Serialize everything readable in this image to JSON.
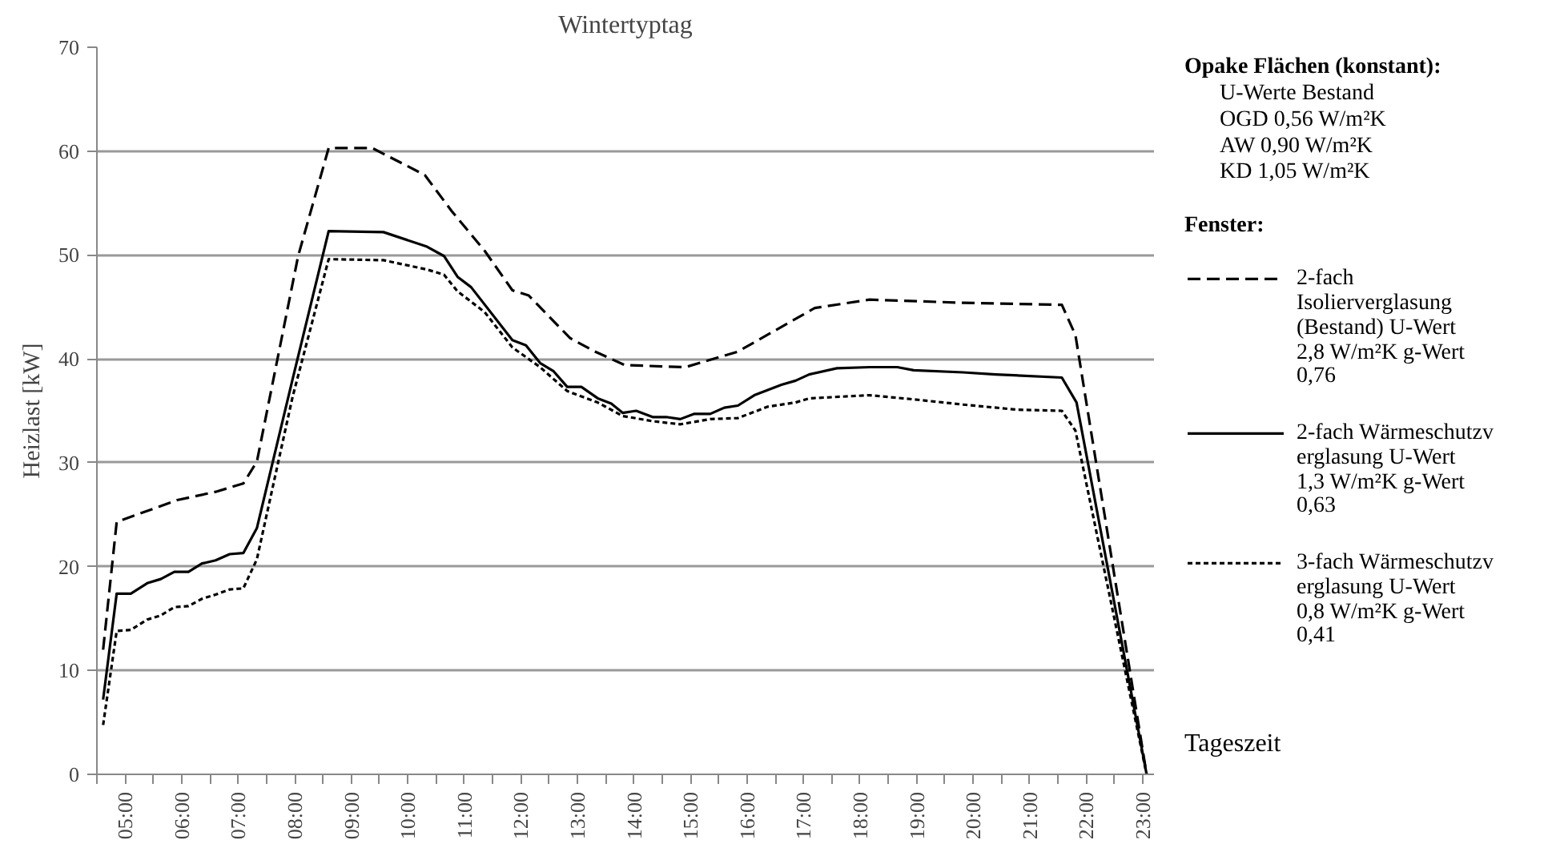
{
  "chart_data": {
    "type": "line",
    "title": "Wintertyptag",
    "ylabel": "Heizlast [kW]",
    "xlabel": "Tageszeit",
    "legend_title": "Fenster:",
    "annotations": [
      "Opake Flächen (konstant):",
      "U-Werte Bestand",
      "OGD 0,56 W/m²K",
      "AW 0,90 W/m²K",
      "KD 1,05 W/m²K"
    ],
    "xlim": [
      4.5,
      23.2
    ],
    "ylim": [
      0,
      70
    ],
    "yticks": [
      0,
      10,
      20,
      30,
      40,
      50,
      60,
      70
    ],
    "xticks": [
      {
        "value": 4.5,
        "label": null
      },
      {
        "value": 5,
        "label": "05:00"
      },
      {
        "value": 5.5,
        "label": null
      },
      {
        "value": 6,
        "label": "06:00"
      },
      {
        "value": 6.5,
        "label": null
      },
      {
        "value": 7,
        "label": "07:00"
      },
      {
        "value": 7.5,
        "label": null
      },
      {
        "value": 8,
        "label": "08:00"
      },
      {
        "value": 8.5,
        "label": null
      },
      {
        "value": 9,
        "label": "09:00"
      },
      {
        "value": 9.5,
        "label": null
      },
      {
        "value": 10,
        "label": "10:00"
      },
      {
        "value": 10.5,
        "label": null
      },
      {
        "value": 11,
        "label": "11:00"
      },
      {
        "value": 11.5,
        "label": null
      },
      {
        "value": 12,
        "label": "12:00"
      },
      {
        "value": 12.5,
        "label": null
      },
      {
        "value": 13,
        "label": "13:00"
      },
      {
        "value": 13.5,
        "label": null
      },
      {
        "value": 14,
        "label": "14:00"
      },
      {
        "value": 14.5,
        "label": null
      },
      {
        "value": 15,
        "label": "15:00"
      },
      {
        "value": 15.5,
        "label": null
      },
      {
        "value": 16,
        "label": "16:00"
      },
      {
        "value": 16.5,
        "label": null
      },
      {
        "value": 17,
        "label": "17:00"
      },
      {
        "value": 17.5,
        "label": null
      },
      {
        "value": 18,
        "label": "18:00"
      },
      {
        "value": 18.5,
        "label": null
      },
      {
        "value": 19,
        "label": "19:00"
      },
      {
        "value": 19.5,
        "label": null
      },
      {
        "value": 20,
        "label": "20:00"
      },
      {
        "value": 20.5,
        "label": null
      },
      {
        "value": 21,
        "label": "21:00"
      },
      {
        "value": 21.5,
        "label": null
      },
      {
        "value": 22,
        "label": "22:00"
      },
      {
        "value": 22.5,
        "label": null
      },
      {
        "value": 23,
        "label": "23:00"
      }
    ],
    "grid": "y",
    "legend": "right",
    "marker": "none",
    "series": [
      {
        "name": "2-fach Isolierverglasung (Bestand) U-Wert 2,8 W/m²K g-Wert 0,76",
        "color": "#000000",
        "line_style": "dashed",
        "x": [
          4.61,
          4.85,
          5.92,
          6.6,
          7.09,
          7.33,
          8.06,
          8.6,
          9.37,
          10.3,
          10.78,
          11.36,
          11.85,
          12.14,
          12.87,
          13.31,
          13.84,
          14.91,
          15.84,
          17.2,
          18.17,
          19.82,
          21.57,
          21.81,
          23.07
        ],
        "values": [
          12.0,
          24.3,
          26.4,
          27.2,
          28.0,
          30.1,
          49.9,
          60.3,
          60.3,
          57.7,
          54.2,
          50.4,
          46.6,
          46.1,
          42.0,
          40.7,
          39.4,
          39.2,
          40.7,
          44.9,
          45.7,
          45.4,
          45.2,
          42.3,
          0
        ]
      },
      {
        "name": "2-fach Wärmeschutzverglasung U-Wert 1,3 W/m²K g-Wert 0,63",
        "color": "#000000",
        "line_style": "solid",
        "x": [
          4.61,
          4.85,
          5.1,
          5.39,
          5.63,
          5.87,
          6.12,
          6.36,
          6.6,
          6.85,
          7.09,
          7.33,
          7.96,
          8.6,
          9.57,
          10.34,
          10.64,
          10.88,
          11.12,
          11.85,
          12.09,
          12.34,
          12.58,
          12.82,
          13.07,
          13.36,
          13.6,
          13.8,
          14.04,
          14.33,
          14.57,
          14.82,
          15.06,
          15.35,
          15.6,
          15.84,
          16.13,
          16.37,
          16.61,
          16.86,
          17.1,
          17.59,
          18.17,
          18.66,
          18.95,
          19.82,
          20.4,
          21.57,
          21.83,
          23.07
        ],
        "values": [
          7.2,
          17.4,
          17.4,
          18.4,
          18.8,
          19.5,
          19.5,
          20.3,
          20.6,
          21.2,
          21.3,
          23.7,
          38.0,
          52.3,
          52.2,
          50.8,
          49.9,
          47.9,
          46.9,
          41.8,
          41.3,
          39.6,
          38.8,
          37.3,
          37.3,
          36.2,
          35.7,
          34.8,
          35.0,
          34.4,
          34.4,
          34.2,
          34.7,
          34.7,
          35.3,
          35.5,
          36.5,
          37.0,
          37.5,
          37.9,
          38.5,
          39.1,
          39.2,
          39.2,
          38.9,
          38.7,
          38.5,
          38.2,
          35.8,
          0
        ]
      },
      {
        "name": "3-fach Wärmeschutzverglasung U-Wert 0,8 W/m²K g-Wert 0,41",
        "color": "#000000",
        "line_style": "dotted",
        "x": [
          4.61,
          4.85,
          5.1,
          5.39,
          5.63,
          5.87,
          6.12,
          6.36,
          6.6,
          6.85,
          7.09,
          7.33,
          7.96,
          8.6,
          9.57,
          10.34,
          10.64,
          10.88,
          11.36,
          11.85,
          12.34,
          12.82,
          13.36,
          13.8,
          14.33,
          14.82,
          15.35,
          15.84,
          16.37,
          16.86,
          17.1,
          18.17,
          18.95,
          19.82,
          20.79,
          21.57,
          21.81,
          23.07
        ],
        "values": [
          4.75,
          13.8,
          13.9,
          14.9,
          15.3,
          16.1,
          16.2,
          16.9,
          17.3,
          17.8,
          17.9,
          20.7,
          36.3,
          49.6,
          49.5,
          48.6,
          48.1,
          46.5,
          44.5,
          41.1,
          39.2,
          36.9,
          35.8,
          34.5,
          34.0,
          33.7,
          34.2,
          34.3,
          35.4,
          35.8,
          36.2,
          36.5,
          36.1,
          35.6,
          35.1,
          35.0,
          33.1,
          0
        ]
      }
    ]
  }
}
